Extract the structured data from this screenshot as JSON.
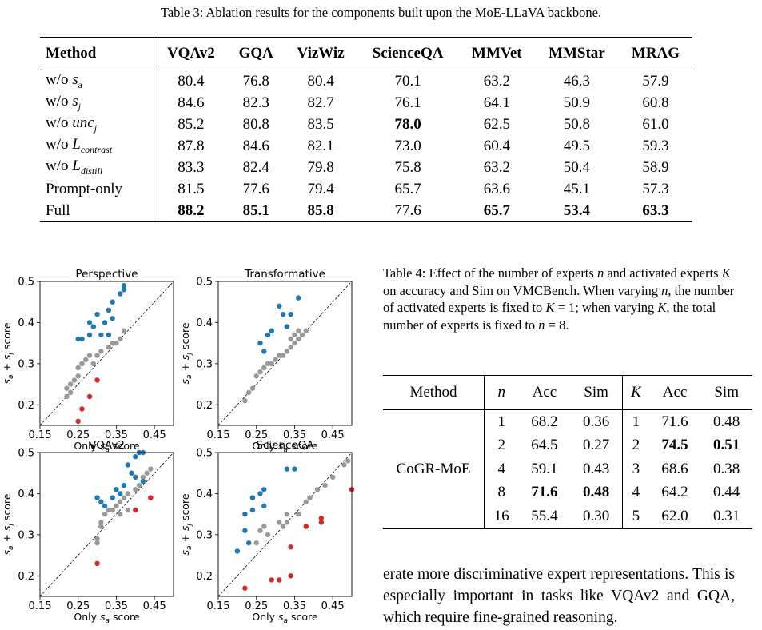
{
  "table3": {
    "caption": "Table 3: Ablation results for the components built upon the MoE-LLaVA backbone.",
    "headers": [
      "Method",
      "VQAv2",
      "GQA",
      "VizWiz",
      "ScienceQA",
      "MMVet",
      "MMStar",
      "MRAG"
    ],
    "rows": [
      {
        "method": "w/o s_a",
        "vals": [
          "80.4",
          "76.8",
          "80.4",
          "70.1",
          "63.2",
          "46.3",
          "57.9"
        ]
      },
      {
        "method": "w/o s_j",
        "vals": [
          "84.6",
          "82.3",
          "82.7",
          "76.1",
          "64.1",
          "50.9",
          "60.8"
        ]
      },
      {
        "method": "w/o unc_j",
        "vals": [
          "85.2",
          "80.8",
          "83.5",
          "78.0",
          "62.5",
          "50.8",
          "61.0"
        ]
      },
      {
        "method": "w/o L_contrast",
        "vals": [
          "87.8",
          "84.6",
          "82.1",
          "73.0",
          "60.4",
          "49.5",
          "59.3"
        ]
      },
      {
        "method": "w/o L_distill",
        "vals": [
          "83.3",
          "82.4",
          "79.8",
          "75.8",
          "63.2",
          "50.4",
          "58.9"
        ]
      },
      {
        "method": "Prompt-only",
        "vals": [
          "81.5",
          "77.6",
          "79.4",
          "65.7",
          "63.6",
          "45.1",
          "57.3"
        ]
      },
      {
        "method": "Full",
        "vals": [
          "88.2",
          "85.1",
          "85.8",
          "77.6",
          "65.7",
          "53.4",
          "63.3"
        ]
      }
    ]
  },
  "table4": {
    "caption": "Table 4: Effect of the number of experts n and activated experts K on accuracy and Sim on VMCBench. When varying n, the number of activated experts is fixed to K = 1; when varying K, the total number of experts is fixed to n = 8.",
    "headers": [
      "Method",
      "n",
      "Acc",
      "Sim",
      "K",
      "Acc",
      "Sim"
    ],
    "method": "CoGR-MoE",
    "rows": [
      [
        "1",
        "68.2",
        "0.36",
        "1",
        "71.6",
        "0.48"
      ],
      [
        "2",
        "64.5",
        "0.27",
        "2",
        "74.5",
        "0.51"
      ],
      [
        "4",
        "59.1",
        "0.43",
        "3",
        "68.6",
        "0.38"
      ],
      [
        "8",
        "71.6",
        "0.48",
        "4",
        "64.2",
        "0.44"
      ],
      [
        "16",
        "55.4",
        "0.30",
        "5",
        "62.0",
        "0.31"
      ]
    ]
  },
  "body_text": "erate more discriminative expert representations. This is especially important in tasks like VQAv2 and GQA, which require fine-grained reasoning.",
  "colors": {
    "high": "#1f77b4",
    "mid": "#999999",
    "low": "#d62728"
  },
  "chart_data": [
    {
      "type": "scatter",
      "title": "Perspective",
      "xlabel": "Only s_a score",
      "ylabel": "s_a + s_j score",
      "xlim": [
        0.15,
        0.5
      ],
      "ylim": [
        0.15,
        0.5
      ],
      "xticks": [
        "0.15",
        "0.25",
        "0.35",
        "0.45"
      ],
      "yticks": [
        "0.2",
        "0.3",
        "0.4",
        "0.5"
      ],
      "high": [
        [
          0.34,
          0.45
        ],
        [
          0.36,
          0.47
        ],
        [
          0.37,
          0.48
        ],
        [
          0.37,
          0.49
        ],
        [
          0.33,
          0.43
        ],
        [
          0.3,
          0.42
        ],
        [
          0.34,
          0.41
        ],
        [
          0.32,
          0.4
        ],
        [
          0.28,
          0.4
        ],
        [
          0.29,
          0.39
        ],
        [
          0.33,
          0.37
        ],
        [
          0.31,
          0.37
        ],
        [
          0.28,
          0.37
        ],
        [
          0.26,
          0.36
        ],
        [
          0.25,
          0.36
        ]
      ],
      "mid": [
        [
          0.37,
          0.38
        ],
        [
          0.36,
          0.36
        ],
        [
          0.34,
          0.35
        ],
        [
          0.33,
          0.34
        ],
        [
          0.31,
          0.33
        ],
        [
          0.3,
          0.32
        ],
        [
          0.28,
          0.32
        ],
        [
          0.27,
          0.31
        ],
        [
          0.26,
          0.3
        ],
        [
          0.25,
          0.29
        ],
        [
          0.25,
          0.27
        ],
        [
          0.24,
          0.26
        ],
        [
          0.23,
          0.25
        ],
        [
          0.22,
          0.24
        ],
        [
          0.22,
          0.22
        ],
        [
          0.23,
          0.23
        ],
        [
          0.26,
          0.3
        ],
        [
          0.29,
          0.3
        ],
        [
          0.35,
          0.35
        ]
      ],
      "low": [
        [
          0.3,
          0.26
        ],
        [
          0.28,
          0.22
        ],
        [
          0.26,
          0.19
        ],
        [
          0.25,
          0.16
        ]
      ]
    },
    {
      "type": "scatter",
      "title": "Transformative",
      "xlabel": "Only s_a score",
      "ylabel": "s_a + s_j score",
      "xlim": [
        0.15,
        0.5
      ],
      "ylim": [
        0.15,
        0.5
      ],
      "xticks": [
        "0.15",
        "0.25",
        "0.35",
        "0.45"
      ],
      "yticks": [
        "0.2",
        "0.3",
        "0.4",
        "0.5"
      ],
      "high": [
        [
          0.36,
          0.46
        ],
        [
          0.31,
          0.44
        ],
        [
          0.32,
          0.42
        ],
        [
          0.34,
          0.42
        ],
        [
          0.29,
          0.38
        ],
        [
          0.28,
          0.37
        ],
        [
          0.26,
          0.35
        ],
        [
          0.33,
          0.39
        ],
        [
          0.27,
          0.33
        ]
      ],
      "mid": [
        [
          0.38,
          0.38
        ],
        [
          0.37,
          0.37
        ],
        [
          0.36,
          0.36
        ],
        [
          0.35,
          0.35
        ],
        [
          0.34,
          0.34
        ],
        [
          0.33,
          0.33
        ],
        [
          0.32,
          0.32
        ],
        [
          0.31,
          0.32
        ],
        [
          0.3,
          0.31
        ],
        [
          0.29,
          0.3
        ],
        [
          0.28,
          0.3
        ],
        [
          0.27,
          0.29
        ],
        [
          0.26,
          0.28
        ],
        [
          0.25,
          0.27
        ],
        [
          0.24,
          0.24
        ],
        [
          0.23,
          0.23
        ],
        [
          0.22,
          0.21
        ],
        [
          0.34,
          0.36
        ],
        [
          0.35,
          0.37
        ],
        [
          0.36,
          0.38
        ]
      ],
      "low": []
    },
    {
      "type": "scatter",
      "title": "VQAv2",
      "xlabel": "Only s_a score",
      "ylabel": "s_a + s_j score",
      "xlim": [
        0.15,
        0.5
      ],
      "ylim": [
        0.15,
        0.5
      ],
      "xticks": [
        "0.15",
        "0.25",
        "0.35",
        "0.45"
      ],
      "yticks": [
        "0.2",
        "0.3",
        "0.4",
        "0.5"
      ],
      "high": [
        [
          0.41,
          0.5
        ],
        [
          0.42,
          0.5
        ],
        [
          0.4,
          0.49
        ],
        [
          0.38,
          0.47
        ],
        [
          0.39,
          0.45
        ],
        [
          0.4,
          0.44
        ],
        [
          0.42,
          0.43
        ],
        [
          0.37,
          0.42
        ],
        [
          0.35,
          0.41
        ],
        [
          0.36,
          0.4
        ],
        [
          0.34,
          0.39
        ],
        [
          0.3,
          0.39
        ],
        [
          0.31,
          0.38
        ],
        [
          0.32,
          0.37
        ]
      ],
      "mid": [
        [
          0.44,
          0.46
        ],
        [
          0.43,
          0.45
        ],
        [
          0.42,
          0.44
        ],
        [
          0.41,
          0.42
        ],
        [
          0.4,
          0.41
        ],
        [
          0.38,
          0.4
        ],
        [
          0.37,
          0.39
        ],
        [
          0.36,
          0.38
        ],
        [
          0.35,
          0.37
        ],
        [
          0.34,
          0.36
        ],
        [
          0.33,
          0.36
        ],
        [
          0.32,
          0.35
        ],
        [
          0.31,
          0.33
        ],
        [
          0.31,
          0.32
        ],
        [
          0.3,
          0.29
        ],
        [
          0.3,
          0.28
        ],
        [
          0.38,
          0.36
        ],
        [
          0.36,
          0.35
        ]
      ],
      "low": [
        [
          0.44,
          0.39
        ],
        [
          0.4,
          0.36
        ],
        [
          0.3,
          0.23
        ]
      ]
    },
    {
      "type": "scatter",
      "title": "ScienceQA",
      "xlabel": "Only s_a score",
      "ylabel": "s_a + s_j score",
      "xlim": [
        0.15,
        0.5
      ],
      "ylim": [
        0.15,
        0.5
      ],
      "xticks": [
        "0.15",
        "0.25",
        "0.35",
        "0.45"
      ],
      "yticks": [
        "0.2",
        "0.3",
        "0.4",
        "0.5"
      ],
      "high": [
        [
          0.33,
          0.46
        ],
        [
          0.35,
          0.46
        ],
        [
          0.27,
          0.41
        ],
        [
          0.26,
          0.4
        ],
        [
          0.24,
          0.39
        ],
        [
          0.27,
          0.37
        ],
        [
          0.24,
          0.36
        ],
        [
          0.22,
          0.35
        ],
        [
          0.22,
          0.31
        ],
        [
          0.23,
          0.28
        ],
        [
          0.2,
          0.26
        ]
      ],
      "mid": [
        [
          0.49,
          0.48
        ],
        [
          0.48,
          0.47
        ],
        [
          0.45,
          0.44
        ],
        [
          0.43,
          0.42
        ],
        [
          0.41,
          0.41
        ],
        [
          0.39,
          0.39
        ],
        [
          0.38,
          0.38
        ],
        [
          0.36,
          0.35
        ],
        [
          0.33,
          0.35
        ],
        [
          0.31,
          0.33
        ],
        [
          0.33,
          0.33
        ],
        [
          0.32,
          0.32
        ],
        [
          0.27,
          0.32
        ],
        [
          0.26,
          0.31
        ],
        [
          0.28,
          0.3
        ],
        [
          0.25,
          0.28
        ]
      ],
      "low": [
        [
          0.5,
          0.41
        ],
        [
          0.42,
          0.34
        ],
        [
          0.42,
          0.33
        ],
        [
          0.38,
          0.32
        ],
        [
          0.34,
          0.27
        ],
        [
          0.34,
          0.2
        ],
        [
          0.29,
          0.19
        ],
        [
          0.31,
          0.19
        ],
        [
          0.22,
          0.17
        ]
      ]
    }
  ]
}
